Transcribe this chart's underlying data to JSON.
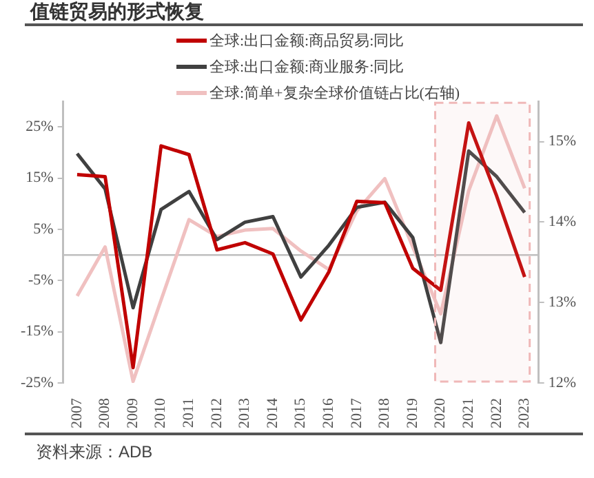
{
  "chart_data": {
    "type": "line",
    "title": "值链贸易的形式恢复",
    "categories": [
      "2007",
      "2008",
      "2009",
      "2010",
      "2011",
      "2012",
      "2013",
      "2014",
      "2015",
      "2016",
      "2017",
      "2018",
      "2019",
      "2020",
      "2021",
      "2022",
      "2023"
    ],
    "series": [
      {
        "name": "全球:出口金额:商品贸易:同比",
        "color": "#c00000",
        "values": [
          15.7,
          15.3,
          -22.0,
          21.3,
          19.6,
          1.0,
          2.4,
          0.2,
          -12.7,
          -3.3,
          10.5,
          10.2,
          -2.6,
          -6.9,
          25.8,
          11.5,
          -4.3
        ]
      },
      {
        "name": "全球:出口金额:商业服务:同比",
        "color": "#404040",
        "values": [
          19.8,
          12.9,
          -10.3,
          8.9,
          12.4,
          3.0,
          6.4,
          7.5,
          -4.3,
          1.9,
          9.3,
          10.3,
          3.4,
          -17.1,
          20.3,
          15.3,
          8.3
        ]
      },
      {
        "name": "全球:简单+复杂全球价值链占比(右轴)",
        "color": "#f0c0c0",
        "axis": "y2",
        "values": [
          13.08,
          13.69,
          12.02,
          13.03,
          14.03,
          13.82,
          13.9,
          13.92,
          13.64,
          13.41,
          14.14,
          14.54,
          13.69,
          12.86,
          14.39,
          15.32,
          14.42
        ]
      }
    ],
    "ylim": [
      -25,
      30
    ],
    "yticks": [
      {
        "value": -25,
        "label": "-25%"
      },
      {
        "value": -15,
        "label": "-15%"
      },
      {
        "value": -5,
        "label": "-5%"
      },
      {
        "value": 5,
        "label": "5%"
      },
      {
        "value": 15,
        "label": "15%"
      },
      {
        "value": 25,
        "label": "25%"
      }
    ],
    "y2lim": [
      12,
      15.5
    ],
    "y2ticks": [
      {
        "value": 12,
        "label": "12%"
      },
      {
        "value": 13,
        "label": "13%"
      },
      {
        "value": 14,
        "label": "14%"
      },
      {
        "value": 15,
        "label": "15%"
      }
    ],
    "ref_lines": [
      {
        "axis": "y",
        "value": 0,
        "color": "#bfbfbf"
      }
    ],
    "bands": [
      {
        "axis": "x",
        "from": "2020",
        "to": "2023",
        "color": "#f0b8b8"
      }
    ],
    "legend": "top",
    "grid": false,
    "marker": "none",
    "line_style": "solid",
    "annotations": [
      "资料来源：ADB"
    ]
  }
}
